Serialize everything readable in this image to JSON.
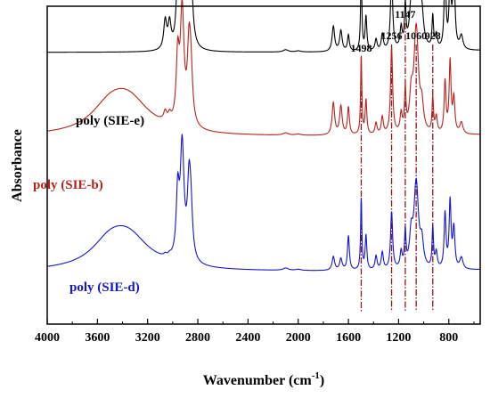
{
  "chart_data": {
    "type": "line",
    "xlabel": "Wavenumber (cm",
    "xlabel_sup": "-1",
    "xlabel_close": ")",
    "ylabel": "Absorbance",
    "xlim": [
      4000,
      550
    ],
    "x_reversed": true,
    "x_ticks": [
      {
        "value": 4000,
        "label": "4000"
      },
      {
        "value": 3600,
        "label": "3600"
      },
      {
        "value": 3200,
        "label": "3200"
      },
      {
        "value": 2800,
        "label": "2800"
      },
      {
        "value": 2400,
        "label": "2400"
      },
      {
        "value": 2000,
        "label": "2000"
      },
      {
        "value": 1600,
        "label": "1600"
      },
      {
        "value": 1200,
        "label": "1200"
      },
      {
        "value": 800,
        "label": "800"
      }
    ],
    "y_ticks_shown": false,
    "peak_markers": [
      {
        "value": 1498,
        "label": "1498",
        "label_row": 2
      },
      {
        "value": 1256,
        "label": "1256",
        "label_row": 1
      },
      {
        "value": 1147,
        "label": "1147",
        "label_row": 0
      },
      {
        "value": 1060,
        "label": "1060",
        "label_row": 1
      },
      {
        "value": 928,
        "label": "928",
        "label_row": 1
      }
    ],
    "marker_color": "#8b1a1a",
    "peaks": [
      {
        "c": 3500,
        "w": 180
      },
      {
        "c": 3350,
        "w": 200
      },
      {
        "c": 3060,
        "w": 14
      },
      {
        "c": 3025,
        "w": 14
      },
      {
        "c": 2960,
        "w": 14
      },
      {
        "c": 2925,
        "w": 18
      },
      {
        "c": 2870,
        "w": 16
      },
      {
        "c": 2855,
        "w": 16
      },
      {
        "c": 2100,
        "w": 25
      },
      {
        "c": 2000,
        "w": 25
      },
      {
        "c": 1720,
        "w": 12
      },
      {
        "c": 1660,
        "w": 12
      },
      {
        "c": 1600,
        "w": 9
      },
      {
        "c": 1498,
        "w": 6
      },
      {
        "c": 1460,
        "w": 8
      },
      {
        "c": 1380,
        "w": 10
      },
      {
        "c": 1330,
        "w": 10
      },
      {
        "c": 1256,
        "w": 10
      },
      {
        "c": 1180,
        "w": 10
      },
      {
        "c": 1147,
        "w": 7
      },
      {
        "c": 1100,
        "w": 15
      },
      {
        "c": 1060,
        "w": 22
      },
      {
        "c": 1015,
        "w": 15
      },
      {
        "c": 928,
        "w": 7
      },
      {
        "c": 900,
        "w": 10
      },
      {
        "c": 830,
        "w": 9
      },
      {
        "c": 790,
        "w": 9
      },
      {
        "c": 760,
        "w": 10
      },
      {
        "c": 700,
        "w": 15
      }
    ],
    "series": [
      {
        "label": "poly (SIE-e)",
        "color": "#000000",
        "baseline": 0.855,
        "scale": 0.36,
        "amps": [
          0,
          0,
          0.25,
          0.22,
          0.55,
          0.7,
          0.68,
          0.45,
          0.02,
          0.01,
          0.22,
          0.18,
          0.14,
          0.72,
          0.3,
          0.1,
          0.14,
          0.68,
          0.18,
          0.35,
          0.28,
          0.98,
          0.25,
          0.28,
          0.12,
          0.68,
          0.6,
          0.72,
          0.12
        ]
      },
      {
        "label": "poly (SIE-b)",
        "color": "#b5231d",
        "baseline": 0.59,
        "scale": 0.36,
        "amps": [
          0.2,
          0.28,
          0.08,
          0.06,
          0.55,
          0.99,
          0.62,
          0.38,
          0.02,
          0.01,
          0.28,
          0.25,
          0.24,
          0.68,
          0.3,
          0.1,
          0.15,
          0.75,
          0.16,
          0.35,
          0.28,
          0.92,
          0.2,
          0.3,
          0.14,
          0.45,
          0.62,
          0.3,
          0.1
        ]
      },
      {
        "label": "poly (SIE-d)",
        "color": "#1515cc",
        "baseline": 0.165,
        "scale": 0.36,
        "amps": [
          0.2,
          0.26,
          0.02,
          0.02,
          0.55,
          0.99,
          0.62,
          0.35,
          0.02,
          0.01,
          0.12,
          0.1,
          0.3,
          0.62,
          0.3,
          0.12,
          0.15,
          0.5,
          0.14,
          0.3,
          0.26,
          0.75,
          0.2,
          0.35,
          0.14,
          0.48,
          0.58,
          0.35,
          0.1
        ]
      }
    ]
  }
}
